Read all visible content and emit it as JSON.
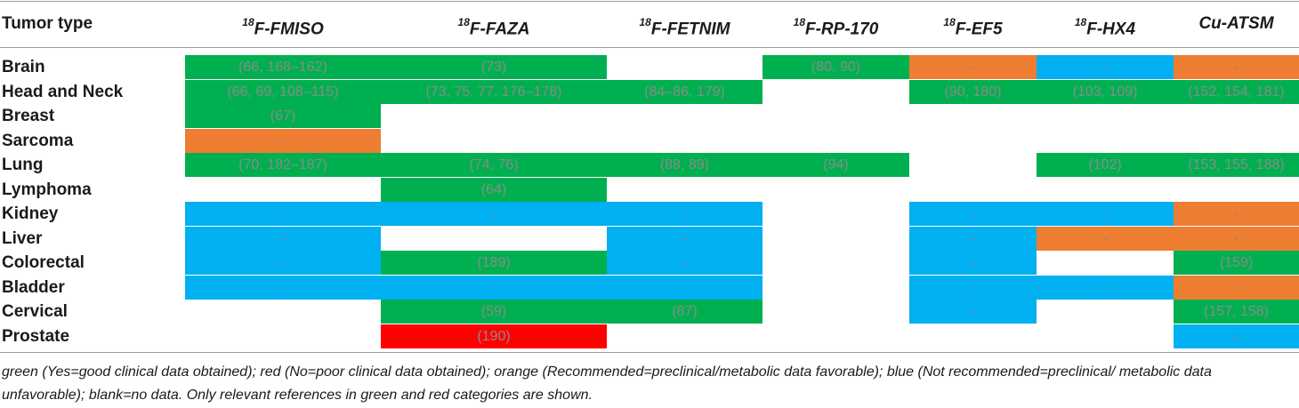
{
  "colors": {
    "green": "#00b050",
    "red": "#ff0000",
    "orange": "#ed7d31",
    "blue": "#00b0f0",
    "blank": "#ffffff"
  },
  "header": {
    "tumor_type": "Tumor type",
    "tracers": [
      {
        "sup": "18",
        "name": "F-FMISO"
      },
      {
        "sup": "18",
        "name": "F-FAZA"
      },
      {
        "sup": "18",
        "name": "F-FETNIM"
      },
      {
        "sup": "18",
        "name": "F-RP-170"
      },
      {
        "sup": "18",
        "name": "F-EF5"
      },
      {
        "sup": "18",
        "name": "F-HX4"
      },
      {
        "sup": "",
        "name": "Cu-ATSM"
      }
    ]
  },
  "rows": [
    {
      "tumor": "Brain",
      "cells": [
        {
          "status": "green",
          "text": "(66, 168–162)"
        },
        {
          "status": "green",
          "text": "(73)"
        },
        {
          "status": "blank",
          "text": ""
        },
        {
          "status": "green",
          "text": "(80, 90)"
        },
        {
          "status": "orange",
          "text": "-"
        },
        {
          "status": "blue",
          "text": "-"
        },
        {
          "status": "orange",
          "text": "-"
        }
      ]
    },
    {
      "tumor": "Head and Neck",
      "cells": [
        {
          "status": "green",
          "text": "(66, 69, 108–115)"
        },
        {
          "status": "green",
          "text": "(73, 75, 77, 176–178)"
        },
        {
          "status": "green",
          "text": "(84–86, 179)"
        },
        {
          "status": "blank",
          "text": ""
        },
        {
          "status": "green",
          "text": "(90, 180)"
        },
        {
          "status": "green",
          "text": "(103, 109)"
        },
        {
          "status": "green",
          "text": "(152, 154, 181)"
        }
      ]
    },
    {
      "tumor": "Breast",
      "cells": [
        {
          "status": "green",
          "text": "(67)"
        },
        {
          "status": "blank",
          "text": ""
        },
        {
          "status": "blank",
          "text": ""
        },
        {
          "status": "blank",
          "text": ""
        },
        {
          "status": "blank",
          "text": ""
        },
        {
          "status": "blank",
          "text": ""
        },
        {
          "status": "blank",
          "text": ""
        }
      ]
    },
    {
      "tumor": "Sarcoma",
      "cells": [
        {
          "status": "orange",
          "text": "-"
        },
        {
          "status": "blank",
          "text": ""
        },
        {
          "status": "blank",
          "text": ""
        },
        {
          "status": "blank",
          "text": ""
        },
        {
          "status": "blank",
          "text": ""
        },
        {
          "status": "blank",
          "text": ""
        },
        {
          "status": "blank",
          "text": ""
        }
      ]
    },
    {
      "tumor": "Lung",
      "cells": [
        {
          "status": "green",
          "text": "(70, 182–187)"
        },
        {
          "status": "green",
          "text": "(74, 76)"
        },
        {
          "status": "green",
          "text": "(88, 89)"
        },
        {
          "status": "green",
          "text": "(94)"
        },
        {
          "status": "blank",
          "text": ""
        },
        {
          "status": "green",
          "text": "(102)"
        },
        {
          "status": "green",
          "text": "(153, 155, 188)"
        }
      ]
    },
    {
      "tumor": "Lymphoma",
      "cells": [
        {
          "status": "blank",
          "text": ""
        },
        {
          "status": "green",
          "text": "(64)"
        },
        {
          "status": "blank",
          "text": ""
        },
        {
          "status": "blank",
          "text": ""
        },
        {
          "status": "blank",
          "text": ""
        },
        {
          "status": "blank",
          "text": ""
        },
        {
          "status": "blank",
          "text": ""
        }
      ]
    },
    {
      "tumor": "Kidney",
      "cells": [
        {
          "status": "blue",
          "text": "-"
        },
        {
          "status": "blue",
          "text": "-"
        },
        {
          "status": "blue",
          "text": "-"
        },
        {
          "status": "blank",
          "text": ""
        },
        {
          "status": "blue",
          "text": "-"
        },
        {
          "status": "blue",
          "text": "-"
        },
        {
          "status": "orange",
          "text": "-"
        }
      ]
    },
    {
      "tumor": "Liver",
      "cells": [
        {
          "status": "blue",
          "text": "-"
        },
        {
          "status": "blank",
          "text": ""
        },
        {
          "status": "blue",
          "text": "-"
        },
        {
          "status": "blank",
          "text": ""
        },
        {
          "status": "blue",
          "text": "-"
        },
        {
          "status": "orange",
          "text": "-"
        },
        {
          "status": "orange",
          "text": "-"
        }
      ]
    },
    {
      "tumor": "Colorectal",
      "cells": [
        {
          "status": "blue",
          "text": "-"
        },
        {
          "status": "green",
          "text": "(189)"
        },
        {
          "status": "blue",
          "text": "-"
        },
        {
          "status": "blank",
          "text": ""
        },
        {
          "status": "blue",
          "text": "-"
        },
        {
          "status": "blank",
          "text": ""
        },
        {
          "status": "green",
          "text": "(159)"
        }
      ]
    },
    {
      "tumor": "Bladder",
      "cells": [
        {
          "status": "blue",
          "text": "-"
        },
        {
          "status": "blue",
          "text": "-"
        },
        {
          "status": "blue",
          "text": "-"
        },
        {
          "status": "blank",
          "text": ""
        },
        {
          "status": "blue",
          "text": "-"
        },
        {
          "status": "blue",
          "text": "-"
        },
        {
          "status": "orange",
          "text": "-"
        }
      ]
    },
    {
      "tumor": "Cervical",
      "cells": [
        {
          "status": "blank",
          "text": ""
        },
        {
          "status": "green",
          "text": "(59)"
        },
        {
          "status": "green",
          "text": "(87)"
        },
        {
          "status": "blank",
          "text": ""
        },
        {
          "status": "blue",
          "text": "-"
        },
        {
          "status": "blank",
          "text": ""
        },
        {
          "status": "green",
          "text": "(157, 158)"
        }
      ]
    },
    {
      "tumor": "Prostate",
      "cells": [
        {
          "status": "blank",
          "text": ""
        },
        {
          "status": "red",
          "text": "(190)"
        },
        {
          "status": "blank",
          "text": ""
        },
        {
          "status": "blank",
          "text": ""
        },
        {
          "status": "blank",
          "text": ""
        },
        {
          "status": "blank",
          "text": ""
        },
        {
          "status": "blue",
          "text": "-"
        }
      ]
    }
  ],
  "footnote": "green (Yes=good clinical data obtained); red (No=poor clinical data obtained); orange (Recommended=preclinical/metabolic data favorable); blue (Not recommended=preclinical/ metabolic data unfavorable); blank=no data. Only relevant references in green and red categories are shown."
}
